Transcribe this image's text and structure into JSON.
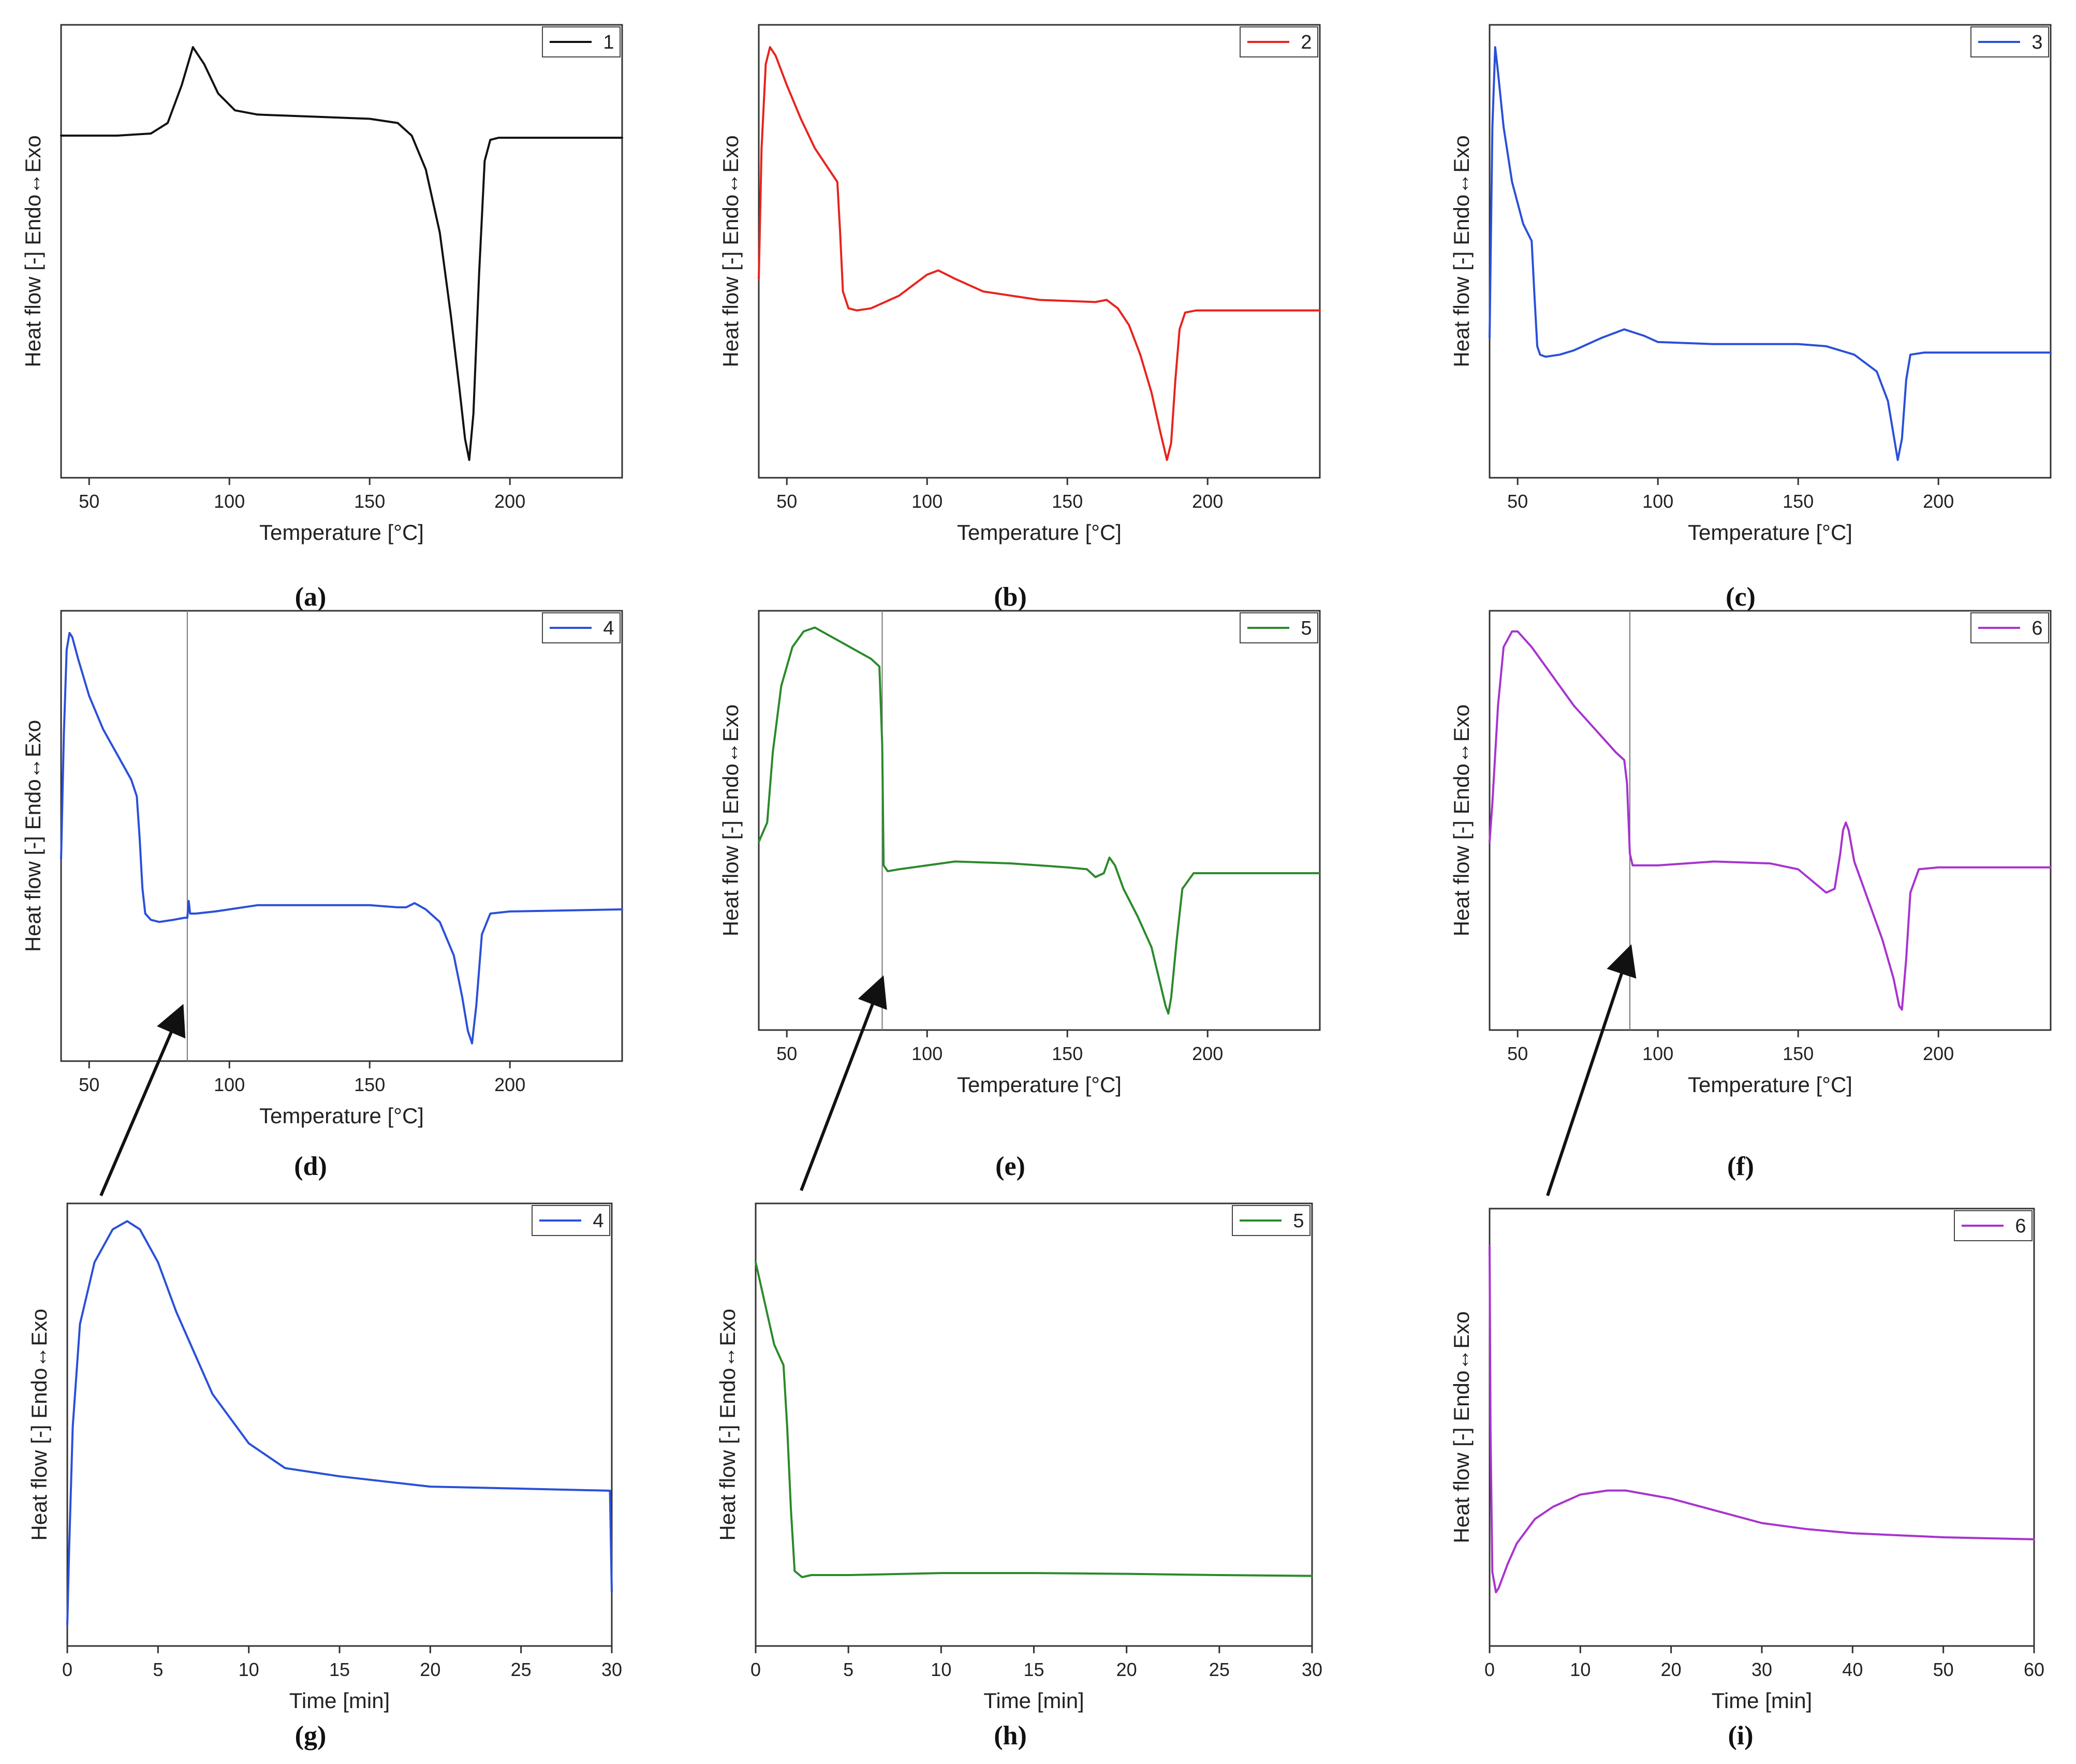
{
  "figure_labels": {
    "heat_flow_ylabel": "Heat flow [-] Endo↔Exo",
    "temperature_xlabel": "Temperature [°C]",
    "time_xlabel": "Time [min]"
  },
  "chart_data": [
    {
      "panel": "(a)",
      "type": "line",
      "title": "",
      "legend": "1",
      "color": "#111111",
      "xlabel": "Temperature [°C]",
      "ylabel": "Heat flow [-] Endo↔Exo",
      "xlim": [
        40,
        240
      ],
      "ylim": [
        0,
        1
      ],
      "xticks": [
        50,
        100,
        150,
        200
      ],
      "legend_position": "top-right",
      "x": [
        40,
        60,
        72,
        78,
        83,
        87,
        91,
        96,
        102,
        110,
        130,
        150,
        160,
        165,
        170,
        175,
        179,
        182,
        184,
        185.5,
        187,
        189,
        191,
        193,
        196,
        200,
        220,
        240
      ],
      "y": [
        0.78,
        0.78,
        0.785,
        0.81,
        0.9,
        0.99,
        0.95,
        0.88,
        0.84,
        0.83,
        0.825,
        0.82,
        0.81,
        0.78,
        0.7,
        0.55,
        0.35,
        0.18,
        0.06,
        0.01,
        0.12,
        0.45,
        0.72,
        0.77,
        0.775,
        0.775,
        0.775,
        0.775
      ]
    },
    {
      "panel": "(b)",
      "type": "line",
      "title": "",
      "legend": "2",
      "color": "#e8231c",
      "xlabel": "Temperature [°C]",
      "ylabel": "Heat flow [-] Endo↔Exo",
      "xlim": [
        40,
        240
      ],
      "ylim": [
        0,
        1
      ],
      "xticks": [
        50,
        100,
        150,
        200
      ],
      "legend_position": "top-right",
      "x": [
        40,
        41,
        42.5,
        44,
        46,
        50,
        55,
        60,
        65,
        68,
        69,
        70,
        72,
        75,
        80,
        90,
        100,
        104,
        110,
        120,
        140,
        160,
        164,
        168,
        172,
        176,
        180,
        183,
        185.5,
        187,
        188.5,
        190,
        192,
        196,
        210,
        240
      ],
      "y": [
        0.44,
        0.75,
        0.95,
        0.99,
        0.97,
        0.9,
        0.82,
        0.75,
        0.7,
        0.67,
        0.55,
        0.41,
        0.37,
        0.365,
        0.37,
        0.4,
        0.45,
        0.46,
        0.44,
        0.41,
        0.39,
        0.385,
        0.39,
        0.37,
        0.33,
        0.26,
        0.17,
        0.08,
        0.01,
        0.05,
        0.2,
        0.32,
        0.36,
        0.365,
        0.365,
        0.365
      ]
    },
    {
      "panel": "(c)",
      "type": "line",
      "title": "",
      "legend": "3",
      "color": "#2a50d8",
      "xlabel": "Temperature [°C]",
      "ylabel": "Heat flow [-] Endo↔Exo",
      "xlim": [
        40,
        240
      ],
      "ylim": [
        0,
        1
      ],
      "xticks": [
        50,
        100,
        150,
        200
      ],
      "legend_position": "top-right",
      "x": [
        40,
        41,
        42,
        43,
        45,
        48,
        52,
        55,
        56,
        57,
        58,
        60,
        65,
        70,
        80,
        88,
        95,
        100,
        120,
        150,
        160,
        170,
        178,
        182,
        184,
        185.5,
        187,
        188.5,
        190,
        195,
        210,
        240
      ],
      "y": [
        0.3,
        0.8,
        0.99,
        0.93,
        0.8,
        0.67,
        0.57,
        0.53,
        0.4,
        0.28,
        0.26,
        0.255,
        0.26,
        0.27,
        0.3,
        0.32,
        0.305,
        0.29,
        0.285,
        0.285,
        0.28,
        0.26,
        0.22,
        0.15,
        0.07,
        0.01,
        0.06,
        0.2,
        0.26,
        0.265,
        0.265,
        0.265
      ]
    },
    {
      "panel": "(d)",
      "type": "line",
      "title": "",
      "legend": "4",
      "color": "#2a50d8",
      "xlabel": "Temperature [°C]",
      "ylabel": "Heat flow [-] Endo↔Exo",
      "xlim": [
        40,
        240
      ],
      "ylim": [
        0,
        1
      ],
      "xticks": [
        50,
        100,
        150,
        200
      ],
      "legend_position": "top-right",
      "vline_x": 85,
      "x": [
        40,
        41,
        42,
        43,
        44,
        46,
        50,
        55,
        60,
        65,
        67,
        68,
        69,
        70,
        72,
        75,
        80,
        84,
        85,
        85.5,
        86,
        88,
        95,
        100,
        110,
        130,
        150,
        160,
        163,
        166,
        170,
        175,
        180,
        183,
        185,
        186.5,
        188,
        190,
        193,
        200,
        240
      ],
      "y": [
        0.45,
        0.75,
        0.95,
        0.99,
        0.98,
        0.93,
        0.84,
        0.76,
        0.7,
        0.64,
        0.6,
        0.5,
        0.38,
        0.32,
        0.305,
        0.3,
        0.305,
        0.31,
        0.31,
        0.35,
        0.32,
        0.32,
        0.325,
        0.33,
        0.34,
        0.34,
        0.34,
        0.335,
        0.335,
        0.345,
        0.33,
        0.3,
        0.22,
        0.12,
        0.04,
        0.01,
        0.1,
        0.27,
        0.32,
        0.325,
        0.33
      ]
    },
    {
      "panel": "(e)",
      "type": "line",
      "title": "",
      "legend": "5",
      "color": "#2a8a2a",
      "xlabel": "Temperature [°C]",
      "ylabel": "Heat flow [-] Endo↔Exo",
      "xlim": [
        40,
        240
      ],
      "ylim": [
        0,
        1
      ],
      "xticks": [
        50,
        100,
        150,
        200
      ],
      "legend_position": "top-right",
      "vline_x": 84,
      "x": [
        40,
        43,
        45,
        48,
        52,
        56,
        60,
        65,
        70,
        75,
        80,
        83,
        84,
        84.5,
        86,
        90,
        100,
        110,
        130,
        150,
        157,
        160,
        163,
        165,
        167,
        170,
        175,
        180,
        183,
        185,
        186,
        187,
        189,
        191,
        195,
        210,
        240
      ],
      "y": [
        0.45,
        0.5,
        0.68,
        0.85,
        0.95,
        0.99,
        1.0,
        0.98,
        0.96,
        0.94,
        0.92,
        0.9,
        0.7,
        0.39,
        0.375,
        0.38,
        0.39,
        0.4,
        0.395,
        0.385,
        0.38,
        0.36,
        0.37,
        0.41,
        0.39,
        0.33,
        0.26,
        0.18,
        0.09,
        0.03,
        0.01,
        0.05,
        0.2,
        0.33,
        0.37,
        0.37,
        0.37
      ]
    },
    {
      "panel": "(f)",
      "type": "line",
      "title": "",
      "legend": "6",
      "color": "#a833cf",
      "xlabel": "Temperature [°C]",
      "ylabel": "Heat flow [-] Endo↔Exo",
      "xlim": [
        40,
        240
      ],
      "ylim": [
        0,
        1
      ],
      "xticks": [
        50,
        100,
        150,
        200
      ],
      "legend_position": "top-right",
      "vline_x": 90,
      "x": [
        40,
        41,
        43,
        45,
        48,
        50,
        55,
        60,
        70,
        80,
        85,
        88,
        89,
        90,
        91,
        95,
        100,
        120,
        140,
        150,
        155,
        160,
        163,
        165,
        166,
        167,
        168,
        170,
        175,
        180,
        184,
        186,
        187,
        188.5,
        190,
        193,
        200,
        240
      ],
      "y": [
        0.45,
        0.55,
        0.8,
        0.95,
        0.99,
        0.99,
        0.95,
        0.9,
        0.8,
        0.72,
        0.68,
        0.66,
        0.6,
        0.42,
        0.39,
        0.39,
        0.39,
        0.4,
        0.395,
        0.38,
        0.35,
        0.32,
        0.33,
        0.42,
        0.48,
        0.5,
        0.48,
        0.4,
        0.3,
        0.2,
        0.1,
        0.03,
        0.02,
        0.15,
        0.32,
        0.38,
        0.385,
        0.385
      ]
    },
    {
      "panel": "(g)",
      "type": "line",
      "title": "",
      "legend": "4",
      "color": "#2a50d8",
      "xlabel": "Time [min]",
      "ylabel": "Heat flow [-] Endo↔Exo",
      "xlim": [
        0,
        30
      ],
      "ylim": [
        0,
        1
      ],
      "xticks": [
        0,
        5,
        10,
        15,
        20,
        25,
        30
      ],
      "legend_position": "top-right",
      "x": [
        0,
        0.1,
        0.3,
        0.7,
        1.5,
        2.5,
        3.3,
        4,
        5,
        6,
        8,
        10,
        12,
        15,
        20,
        25,
        29.9,
        30
      ],
      "y": [
        0.02,
        0.2,
        0.5,
        0.75,
        0.9,
        0.98,
        1.0,
        0.98,
        0.9,
        0.78,
        0.58,
        0.46,
        0.4,
        0.38,
        0.355,
        0.35,
        0.345,
        0.1
      ]
    },
    {
      "panel": "(h)",
      "type": "line",
      "title": "",
      "legend": "5",
      "color": "#2a8a2a",
      "xlabel": "Time [min]",
      "ylabel": "Heat flow [-] Endo↔Exo",
      "xlim": [
        0,
        30
      ],
      "ylim": [
        0,
        1
      ],
      "xticks": [
        0,
        5,
        10,
        15,
        20,
        25,
        30
      ],
      "legend_position": "top-right",
      "x": [
        0,
        0.5,
        1,
        1.5,
        1.7,
        1.9,
        2.1,
        2.5,
        3,
        5,
        10,
        15,
        20,
        25,
        30
      ],
      "y": [
        0.9,
        0.8,
        0.7,
        0.65,
        0.5,
        0.3,
        0.15,
        0.135,
        0.14,
        0.14,
        0.145,
        0.145,
        0.143,
        0.14,
        0.138
      ]
    },
    {
      "panel": "(i)",
      "type": "line",
      "title": "",
      "legend": "6",
      "color": "#a833cf",
      "xlabel": "Time [min]",
      "ylabel": "Heat flow [-] Endo↔Exo",
      "xlim": [
        0,
        60
      ],
      "ylim": [
        0,
        1
      ],
      "xticks": [
        0,
        10,
        20,
        30,
        40,
        50,
        60
      ],
      "legend_position": "top-right",
      "x": [
        0,
        0.1,
        0.3,
        0.7,
        1,
        2,
        3,
        5,
        7,
        10,
        13,
        15,
        20,
        25,
        30,
        35,
        40,
        50,
        60
      ],
      "y": [
        0.95,
        0.5,
        0.15,
        0.1,
        0.11,
        0.17,
        0.22,
        0.28,
        0.31,
        0.34,
        0.35,
        0.35,
        0.33,
        0.3,
        0.27,
        0.255,
        0.245,
        0.235,
        0.23
      ]
    }
  ]
}
